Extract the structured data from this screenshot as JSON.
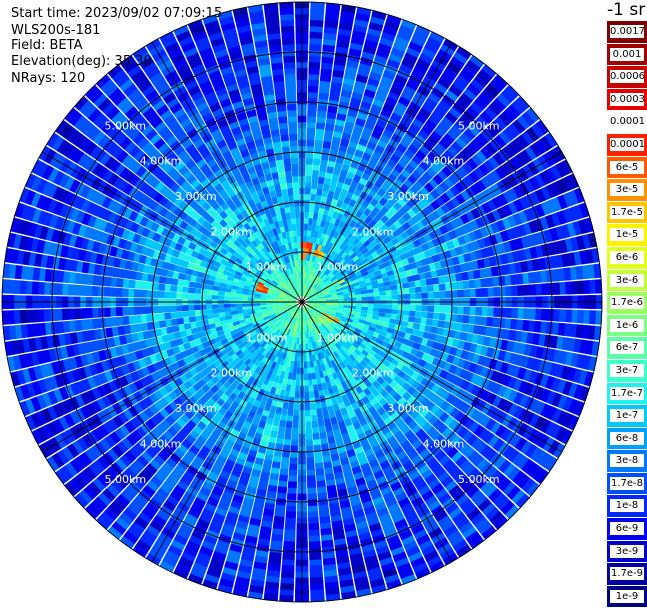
{
  "info": {
    "start_time": "Start time: 2023/09/02 07:09:15",
    "system": "WLS200s-181",
    "field": "Field: BETA",
    "elevation": "Elevation(deg): 35.30",
    "nrays": "NRays: 120"
  },
  "chart_data": {
    "type": "polar-ppi",
    "field": "BETA",
    "elevation_deg": 35.3,
    "n_rays": 120,
    "max_range_km": 6.0,
    "range_ring_labels": [
      "1.00km",
      "2.00km",
      "3.00km",
      "4.00km",
      "5.00km"
    ],
    "range_rings_km": [
      1,
      2,
      3,
      4,
      5,
      6
    ],
    "spokes_deg": [
      0,
      30,
      60,
      90,
      120,
      150,
      180,
      210,
      240,
      270,
      300,
      330
    ],
    "colorbar": {
      "unit_label": "-1 sr",
      "levels": [
        "0.0017",
        "0.001",
        "0.0006",
        "0.0003",
        "0.00017",
        "0.0001",
        "6e-5",
        "3e-5",
        "1.7e-5",
        "1e-5",
        "6e-6",
        "3e-6",
        "1.7e-6",
        "1e-6",
        "6e-7",
        "3e-7",
        "1.7e-7",
        "1e-7",
        "6e-8",
        "3e-8",
        "1.7e-8",
        "1e-8",
        "6e-9",
        "3e-9",
        "1.7e-9",
        "1e-9"
      ],
      "colors": [
        "#800000",
        "#a00000",
        "#c80000",
        "#e80000",
        "#ffffff",
        "#ff2000",
        "#ff5a00",
        "#ff9000",
        "#ffc400",
        "#fff200",
        "#e4ff1a",
        "#c0ff3c",
        "#9cff62",
        "#7cff84",
        "#5affa6",
        "#3cffcc",
        "#20f0f0",
        "#00c8ff",
        "#00a0ff",
        "#0078ff",
        "#0050ff",
        "#0028ff",
        "#0000f0",
        "#0000c8",
        "#0000a0",
        "#000080"
      ]
    },
    "profile_by_range_km": [
      {
        "range_km": 0.5,
        "typical_log10_beta": -6.2
      },
      {
        "range_km": 1.0,
        "typical_log10_beta": -6.8
      },
      {
        "range_km": 2.0,
        "typical_log10_beta": -7.0
      },
      {
        "range_km": 3.0,
        "typical_log10_beta": -7.2
      },
      {
        "range_km": 4.0,
        "typical_log10_beta": -7.7
      },
      {
        "range_km": 5.0,
        "typical_log10_beta": -7.9
      },
      {
        "range_km": 6.0,
        "typical_log10_beta": -8.0
      }
    ],
    "hotspots": [
      {
        "azimuth_deg": 5,
        "range_km": 0.95,
        "approx_beta": "1e-4"
      },
      {
        "azimuth_deg": 290,
        "range_km": 0.75,
        "approx_beta": "1e-4"
      },
      {
        "azimuth_deg": 20,
        "range_km": 1.0,
        "approx_beta": "3e-5"
      },
      {
        "azimuth_deg": 120,
        "range_km": 0.6,
        "approx_beta": "3e-5"
      },
      {
        "azimuth_deg": 60,
        "range_km": 0.8,
        "approx_beta": "1e-5"
      }
    ]
  }
}
